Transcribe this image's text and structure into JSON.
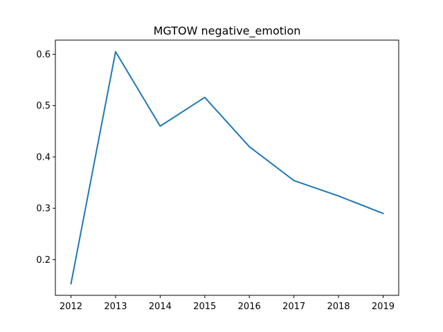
{
  "chart_data": {
    "type": "line",
    "title": "MGTOW negative_emotion",
    "xlabel": "",
    "ylabel": "",
    "x": [
      2012,
      2013,
      2014,
      2015,
      2016,
      2017,
      2018,
      2019
    ],
    "series": [
      {
        "values": [
          0.153,
          0.605,
          0.46,
          0.516,
          0.42,
          0.354,
          0.324,
          0.29
        ],
        "color": "#1f77b4"
      }
    ],
    "xticks": [
      "2012",
      "2013",
      "2014",
      "2015",
      "2016",
      "2017",
      "2018",
      "2019"
    ],
    "yticks": [
      "0.2",
      "0.3",
      "0.4",
      "0.5",
      "0.6"
    ],
    "xlim": [
      2011.65,
      2019.35
    ],
    "ylim": [
      0.1304,
      0.6276
    ],
    "grid": false,
    "legend": "none"
  }
}
